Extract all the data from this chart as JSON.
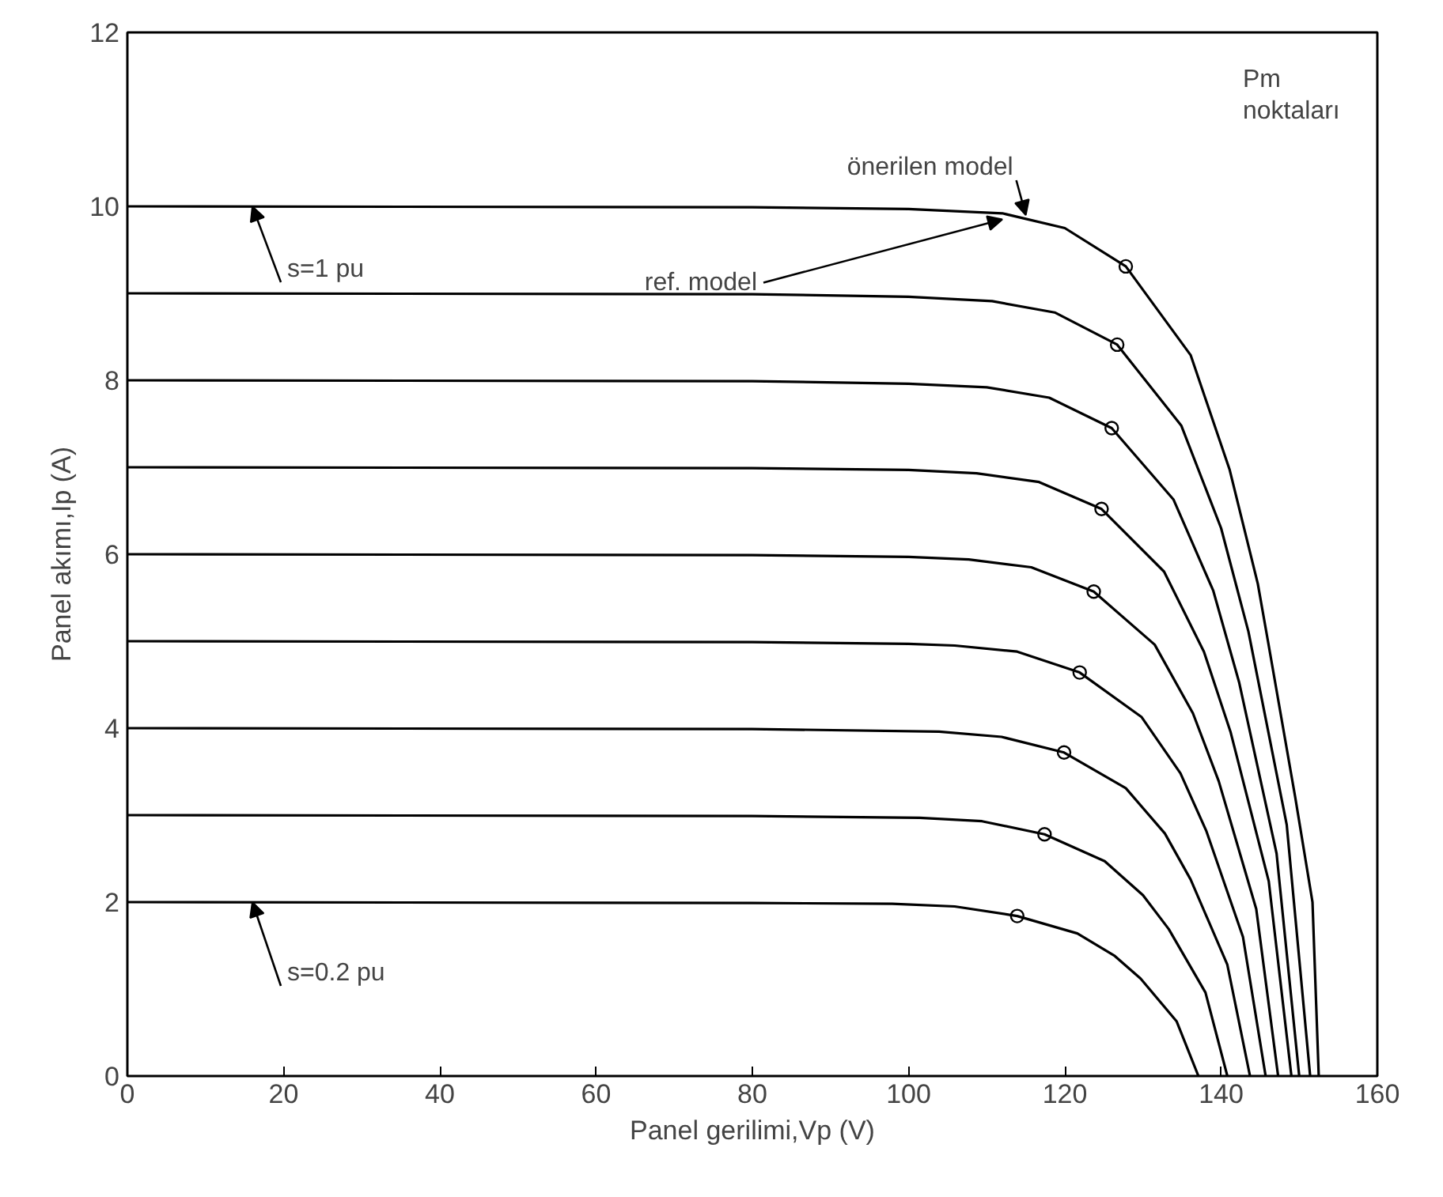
{
  "chart_data": {
    "type": "line",
    "xlabel": "Panel gerilimi,Vp (V)",
    "ylabel": "Panel akımı,Ip (A)",
    "xlim": [
      0,
      160
    ],
    "ylim": [
      0,
      12
    ],
    "xticks": [
      0,
      20,
      40,
      60,
      80,
      100,
      120,
      140,
      160
    ],
    "yticks": [
      0,
      2,
      4,
      6,
      8,
      10,
      12
    ],
    "grid": false,
    "line_style": "solid",
    "marker": "none",
    "series": [
      {
        "color": "#000000",
        "x": [
          0,
          80,
          100,
          112,
          120,
          127.8,
          136.1,
          141.1,
          144.7,
          146,
          149.5,
          151.7,
          152.5
        ],
        "values": [
          10,
          9.99,
          9.97,
          9.92,
          9.75,
          9.31,
          8.29,
          6.97,
          5.66,
          5.0,
          3.2,
          2.0,
          0
        ]
      },
      {
        "color": "#000000",
        "x": [
          0,
          80,
          100,
          110.7,
          118.7,
          126.7,
          134.9,
          140.0,
          143.5,
          148.4,
          151.4
        ],
        "values": [
          9,
          8.99,
          8.96,
          8.91,
          8.78,
          8.41,
          7.48,
          6.3,
          5.11,
          2.89,
          0
        ]
      },
      {
        "color": "#000000",
        "x": [
          0,
          80,
          100,
          110,
          118,
          126,
          133.9,
          139.0,
          142.3,
          147.1,
          150.0
        ],
        "values": [
          8,
          7.99,
          7.96,
          7.92,
          7.8,
          7.45,
          6.63,
          5.58,
          4.53,
          2.56,
          0
        ]
      },
      {
        "color": "#000000",
        "x": [
          0,
          80,
          100,
          108.7,
          116.7,
          124.7,
          132.7,
          137.8,
          141.2,
          146.1,
          149.0
        ],
        "values": [
          7,
          6.99,
          6.97,
          6.93,
          6.83,
          6.52,
          5.8,
          4.88,
          3.96,
          2.24,
          0
        ]
      },
      {
        "color": "#000000",
        "x": [
          0,
          80,
          100,
          107.7,
          115.7,
          123.7,
          131.5,
          136.4,
          139.7,
          144.5,
          147.3
        ],
        "values": [
          6,
          5.99,
          5.97,
          5.94,
          5.85,
          5.57,
          4.96,
          4.17,
          3.39,
          1.92,
          0
        ]
      },
      {
        "color": "#000000",
        "x": [
          0,
          80,
          100,
          105.9,
          113.9,
          121.9,
          129.8,
          134.8,
          138.1,
          142.8,
          145.7
        ],
        "values": [
          5,
          4.99,
          4.97,
          4.95,
          4.88,
          4.64,
          4.13,
          3.48,
          2.82,
          1.6,
          0
        ]
      },
      {
        "color": "#000000",
        "x": [
          0,
          80,
          103.9,
          111.9,
          119.9,
          127.8,
          132.8,
          136.1,
          140.8,
          143.7
        ],
        "values": [
          4,
          3.99,
          3.96,
          3.9,
          3.72,
          3.31,
          2.79,
          2.26,
          1.28,
          0
        ]
      },
      {
        "color": "#000000",
        "x": [
          0,
          80,
          101.4,
          109.4,
          117.4,
          125.1,
          130.0,
          133.3,
          138.0,
          140.8
        ],
        "values": [
          3,
          2.99,
          2.97,
          2.93,
          2.78,
          2.47,
          2.08,
          1.69,
          0.96,
          0
        ]
      },
      {
        "color": "#000000",
        "x": [
          0,
          80,
          97.9,
          105.9,
          113.9,
          121.6,
          126.4,
          129.7,
          134.3,
          137.1
        ],
        "values": [
          2,
          1.99,
          1.98,
          1.95,
          1.84,
          1.64,
          1.38,
          1.12,
          0.63,
          0
        ]
      },
      {
        "type": "scatter",
        "marker": "circle",
        "color": "#000000",
        "x": [
          127.8,
          126.7,
          126.0,
          124.7,
          123.7,
          121.9,
          119.9,
          117.4,
          113.9
        ],
        "values": [
          9.31,
          8.41,
          7.45,
          6.52,
          5.57,
          4.64,
          3.72,
          2.78,
          1.84
        ]
      }
    ],
    "annotations": [
      {
        "text": "önerilen model",
        "x": 115,
        "y": 9.9
      },
      {
        "text": "ref. model",
        "x": 112,
        "y": 9.85
      },
      "Pm noktaları",
      {
        "text": "s=1 pu",
        "x": 16,
        "y": 10
      },
      {
        "text": "s=0.2 pu",
        "x": 16,
        "y": 2
      }
    ]
  }
}
